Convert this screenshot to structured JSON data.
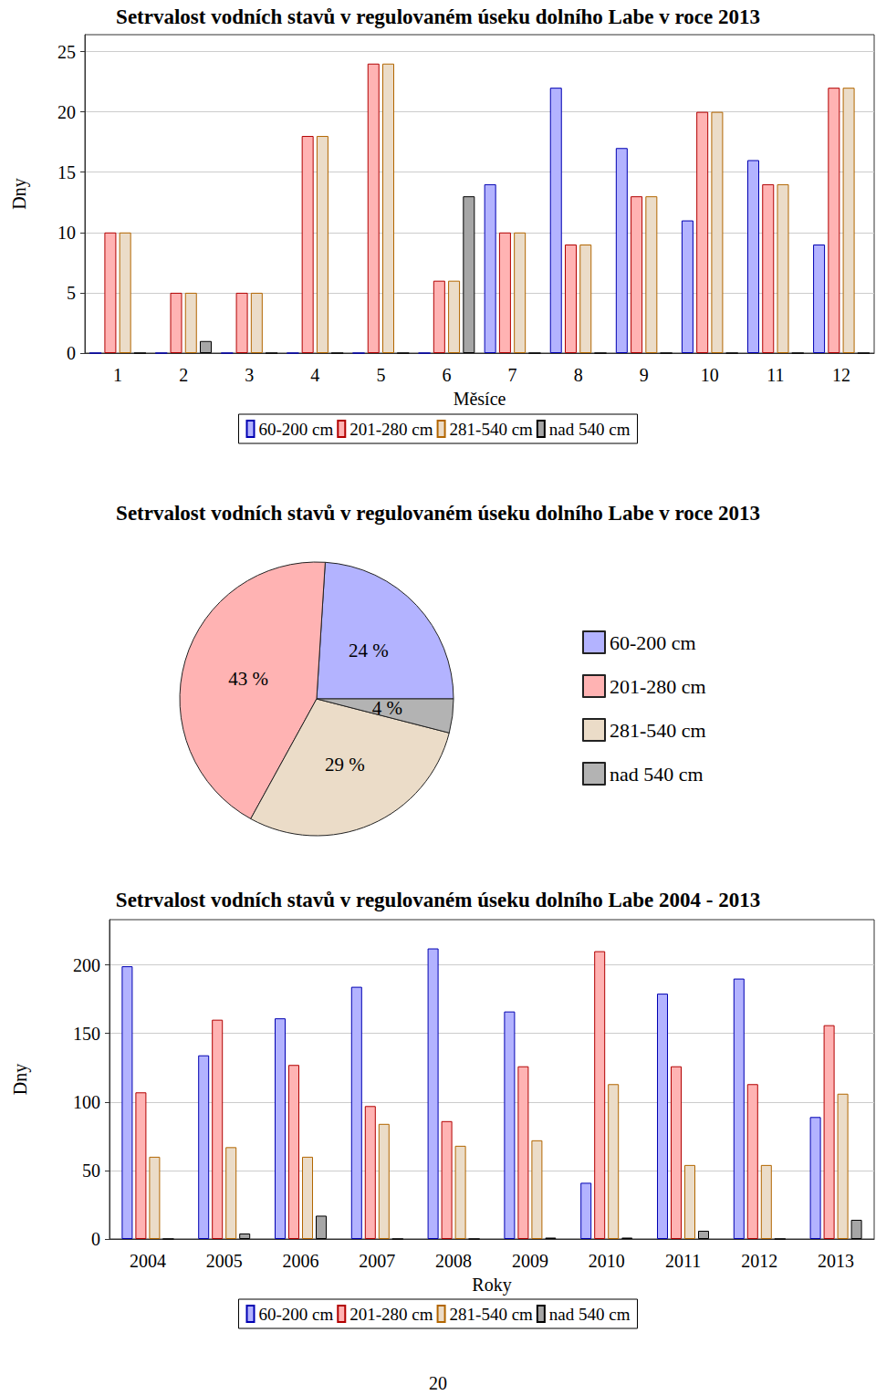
{
  "chart_data": [
    {
      "type": "bar",
      "title": "Setrvalost vodních stavů v regulovaném úseku dolního Labe v roce 2013",
      "x_label": "Měsíce",
      "y_label": "Dny",
      "categories": [
        "1",
        "2",
        "3",
        "4",
        "5",
        "6",
        "7",
        "8",
        "9",
        "10",
        "11",
        "12"
      ],
      "series": [
        {
          "name": "60-200 cm",
          "color": "#b3b3ff",
          "values": [
            0,
            0,
            0,
            0,
            0,
            0,
            14,
            22,
            17,
            11,
            16,
            9
          ]
        },
        {
          "name": "201-280 cm",
          "color": "#ffb3b3",
          "values": [
            10,
            5,
            5,
            18,
            24,
            6,
            10,
            9,
            13,
            20,
            14,
            22
          ]
        },
        {
          "name": "281-540 cm",
          "color": "#ebdcc8",
          "values": [
            10,
            5,
            5,
            18,
            24,
            6,
            10,
            9,
            13,
            20,
            14,
            22
          ]
        },
        {
          "name": "nad 540 cm",
          "color": "#a6a6a6",
          "values": [
            0,
            1,
            0,
            0,
            0,
            13,
            0,
            0,
            0,
            0,
            0,
            0
          ]
        }
      ],
      "ylim": [
        0,
        26.4
      ],
      "yticks": [
        0,
        5,
        10,
        15,
        20,
        25
      ],
      "grid": true,
      "legend": "bottom"
    },
    {
      "type": "pie",
      "title": "Setrvalost vodních stavů v regulovaném úseku dolního Labe v roce 2013",
      "categories": [
        "60-200 cm",
        "201-280 cm",
        "281-540 cm",
        "nad 540 cm"
      ],
      "values": [
        24,
        43,
        29,
        4
      ],
      "value_labels": [
        "24 %",
        "43 %",
        "29 %",
        "4 %"
      ],
      "colors": [
        "#b3b3ff",
        "#ffb3b3",
        "#ebdcc8",
        "#b3b3b3"
      ],
      "data_labels": true,
      "legend": "right"
    },
    {
      "type": "bar",
      "title": "Setrvalost vodních stavů v regulovaném úseku dolního Labe 2004 - 2013",
      "x_label": "Roky",
      "y_label": "Dny",
      "categories": [
        "2004",
        "2005",
        "2006",
        "2007",
        "2008",
        "2009",
        "2010",
        "2011",
        "2012",
        "2013"
      ],
      "series": [
        {
          "name": "60-200 cm",
          "color": "#b3b3ff",
          "values": [
            199,
            134,
            161,
            184,
            212,
            166,
            41,
            179,
            190,
            89
          ]
        },
        {
          "name": "201-280 cm",
          "color": "#ffb3b3",
          "values": [
            107,
            160,
            127,
            97,
            86,
            126,
            210,
            126,
            113,
            156
          ]
        },
        {
          "name": "281-540 cm",
          "color": "#ebdcc8",
          "values": [
            60,
            67,
            60,
            84,
            68,
            72,
            113,
            54,
            54,
            106
          ]
        },
        {
          "name": "nad 540 cm",
          "color": "#a6a6a6",
          "values": [
            0,
            4,
            17,
            0,
            0,
            1,
            1,
            6,
            0,
            14
          ]
        }
      ],
      "ylim": [
        0,
        233
      ],
      "yticks": [
        0,
        50,
        100,
        150,
        200
      ],
      "grid": true,
      "legend": "bottom"
    }
  ],
  "footer": "20"
}
